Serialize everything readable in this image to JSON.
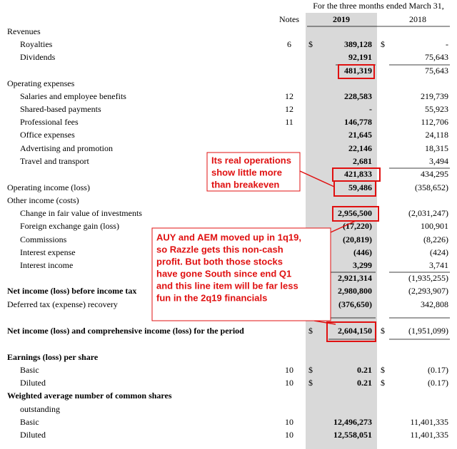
{
  "header": {
    "period": "For the three months ended March 31,",
    "notes": "Notes",
    "year_current": "2019",
    "year_prior": "2018"
  },
  "rows": [
    {
      "label": "Revenues"
    },
    {
      "label": "Royalties",
      "note": "6",
      "sign_2019": "$",
      "amount_2019": "389,128",
      "sign_2018": "$",
      "amount_2018": "-"
    },
    {
      "label": "Dividends",
      "amount_2019": "92,191",
      "amount_2018": "75,643"
    },
    {
      "amount_2019": "481,319",
      "amount_2018": "75,643"
    },
    {
      "label": "Operating expenses"
    },
    {
      "label": "Salaries and employee benefits",
      "note": "12",
      "amount_2019": "228,583",
      "amount_2018": "219,739"
    },
    {
      "label": "Shared-based payments",
      "note": "12",
      "amount_2019": "-",
      "amount_2018": "55,923"
    },
    {
      "label": "Professional fees",
      "note": "11",
      "amount_2019": "146,778",
      "amount_2018": "112,706"
    },
    {
      "label": "Office expenses",
      "amount_2019": "21,645",
      "amount_2018": "24,118"
    },
    {
      "label": "Advertising and promotion",
      "amount_2019": "22,146",
      "amount_2018": "18,315"
    },
    {
      "label": "Travel and transport",
      "amount_2019": "2,681",
      "amount_2018": "3,494"
    },
    {
      "amount_2019": "421,833",
      "amount_2018": "434,295"
    },
    {
      "label": "Operating income (loss)",
      "amount_2019": "59,486",
      "amount_2018": "(358,652)"
    },
    {
      "label": "Other income (costs)"
    },
    {
      "label": "Change in fair value of investments",
      "amount_2019": "2,956,500",
      "amount_2018": "(2,031,247)"
    },
    {
      "label": "Foreign exchange gain (loss)",
      "amount_2019": "(17,220)",
      "amount_2018": "100,901"
    },
    {
      "label": "Commissions",
      "amount_2019": "(20,819)",
      "amount_2018": "(8,226)"
    },
    {
      "label": "Interest expense",
      "amount_2019": "(446)",
      "amount_2018": "(424)"
    },
    {
      "label": "Interest income",
      "amount_2019": "3,299",
      "amount_2018": "3,741"
    },
    {
      "amount_2019": "2,921,314",
      "amount_2018": "(1,935,255)"
    },
    {
      "label": "Net income (loss) before income tax",
      "amount_2019": "2,980,800",
      "amount_2018": "(2,293,907)"
    },
    {
      "label": "Deferred tax (expense) recovery",
      "amount_2019": "(376,650)",
      "amount_2018": "342,808"
    },
    {
      "label": "Net income (loss) and comprehensive income (loss) for the period",
      "sign_2019": "$",
      "amount_2019": "2,604,150",
      "sign_2018": "$",
      "amount_2018": "(1,951,099)"
    },
    {
      "label": "Earnings (loss) per share"
    },
    {
      "label": "Basic",
      "note": "10",
      "sign_2019": "$",
      "amount_2019": "0.21",
      "sign_2018": "$",
      "amount_2018": "(0.17)"
    },
    {
      "label": "Diluted",
      "note": "10",
      "sign_2019": "$",
      "amount_2019": "0.21",
      "sign_2018": "$",
      "amount_2018": "(0.17)"
    },
    {
      "label": "Weighted average number of common shares"
    },
    {
      "label": "outstanding"
    },
    {
      "label": "Basic",
      "note": "10",
      "amount_2019": "12,496,273",
      "amount_2018": "11,401,335"
    },
    {
      "label": "Diluted",
      "note": "10",
      "amount_2019": "12,558,051",
      "amount_2018": "11,401,335"
    }
  ],
  "annotations": [
    {
      "lines": [
        "Its real operations",
        "show little more",
        "than breakeven"
      ]
    },
    {
      "lines": [
        "AUY and AEM moved up in 1q19,",
        "so Razzle gets this non-cash",
        "profit. But both those stocks",
        "have gone South since end Q1",
        "and this line item will be far less",
        "fun in the 2q19 financials"
      ]
    }
  ]
}
